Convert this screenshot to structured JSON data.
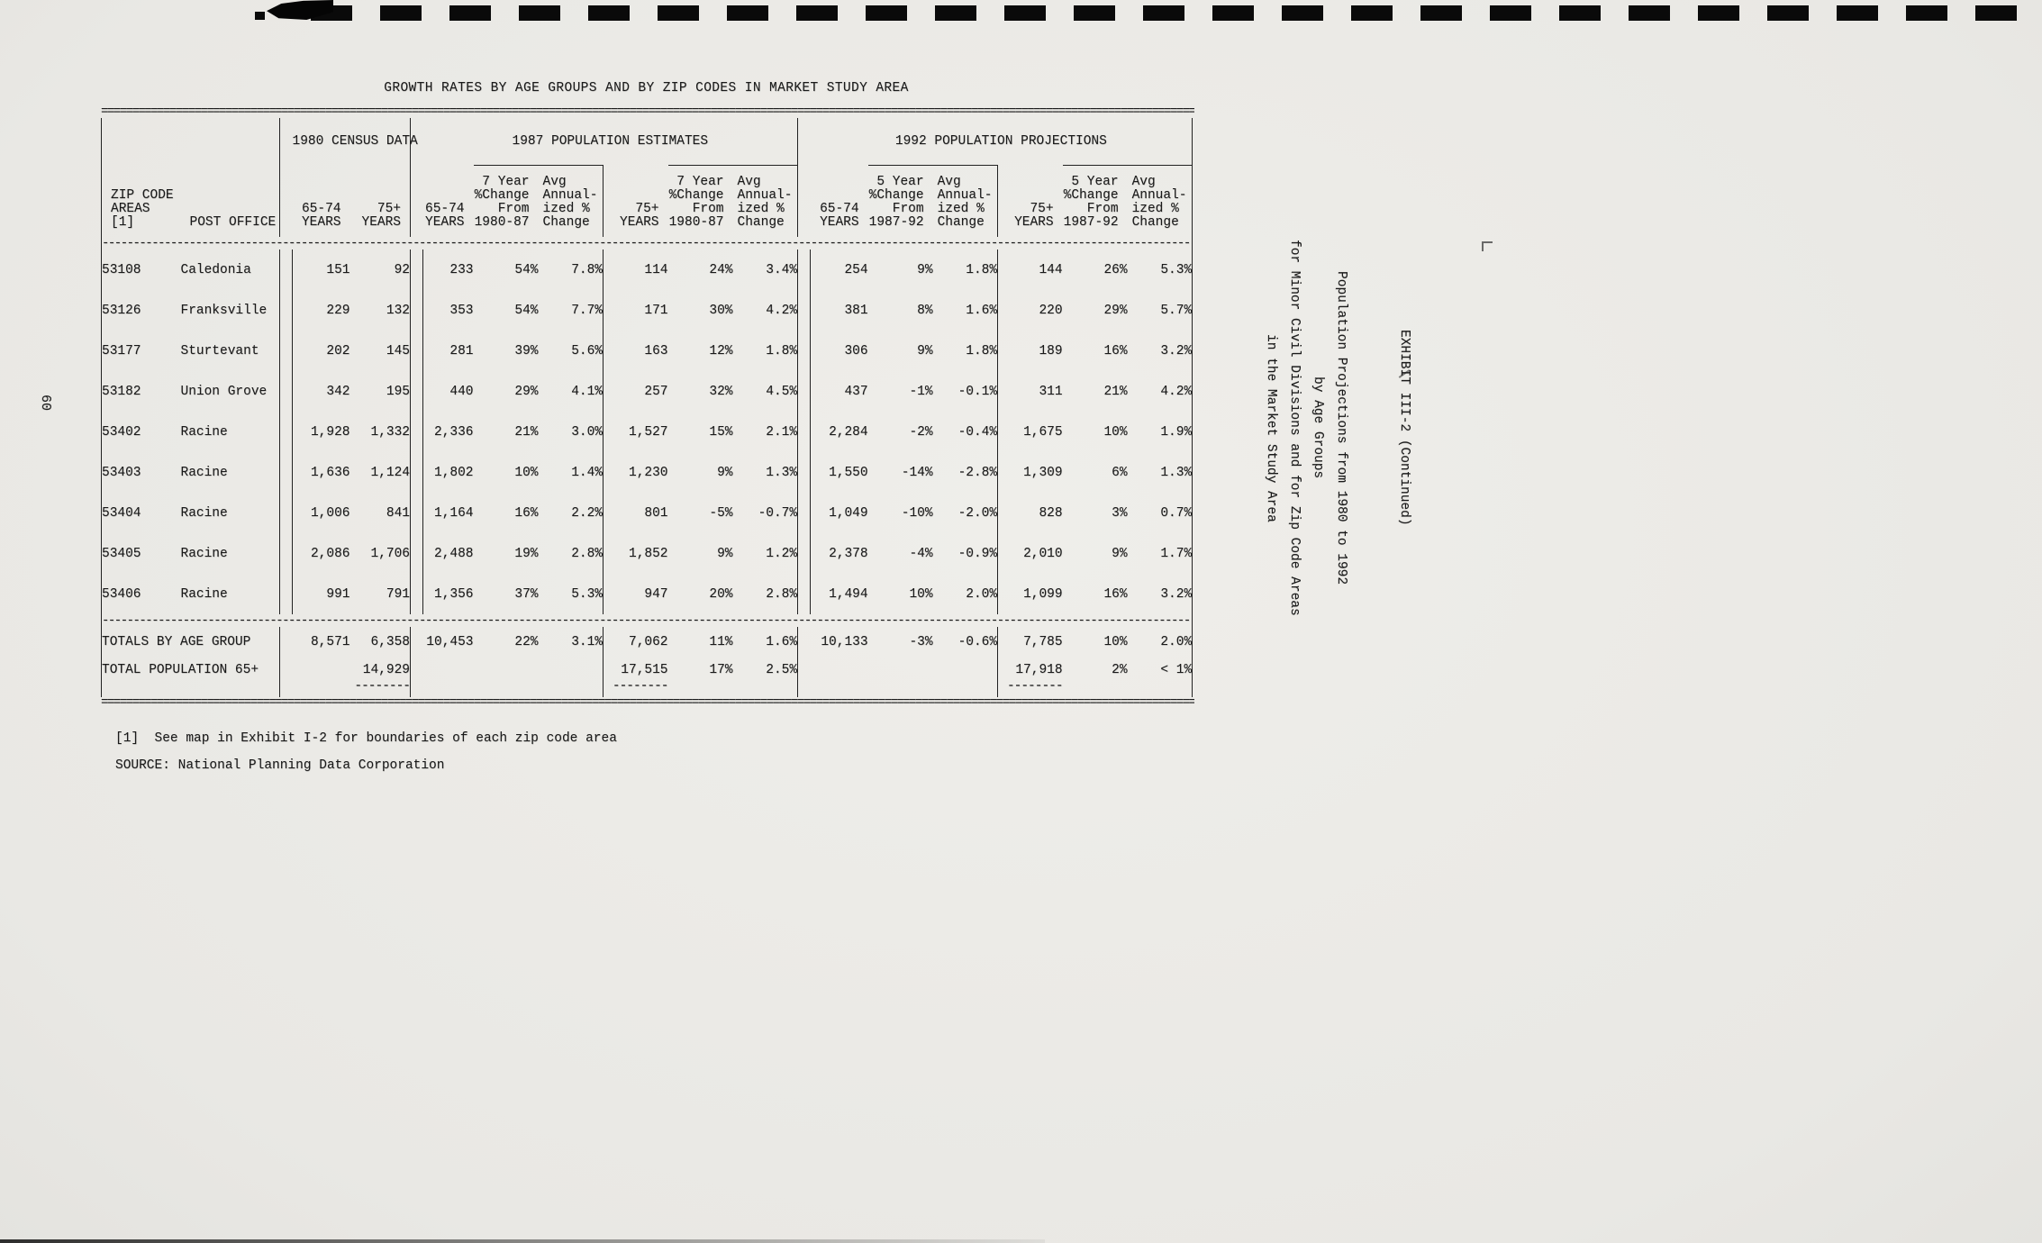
{
  "page": {
    "number": "60",
    "title": "GROWTH RATES BY AGE GROUPS AND BY ZIP CODES IN MARKET STUDY AREA",
    "footnote": "[1]  See map in Exhibit I-2 for boundaries of each zip code area",
    "source": "SOURCE: National Planning Data Corporation"
  },
  "margin_notes": {
    "exhibit": "EXHIBIT III-2 (Continued)",
    "caption": [
      "Population Projections from 1980 to 1992",
      "by Age Groups",
      "for Minor Civil Divisions and for Zip Code Areas",
      "in the Market Study Area"
    ]
  },
  "table": {
    "groups": [
      "1980 CENSUS DATA",
      "1987 POPULATION ESTIMATES",
      "1992 POPULATION PROJECTIONS"
    ],
    "headers": {
      "zip": "ZIP CODE\nAREAS [1]",
      "post_office": "POST OFFICE",
      "years_6574": "65-74\nYEARS",
      "years_75": "75+\nYEARS",
      "chg_1987": "7 Year\n%Change\nFrom\n1980-87",
      "chg_1992": "5 Year\n%Change\nFrom\n1987-92",
      "ann": "Avg\nAnnual-\nized %\nChange"
    },
    "rows": [
      {
        "zip": "53108",
        "po": "Caledonia",
        "v": [
          "151",
          "92",
          "233",
          "54%",
          "7.8%",
          "114",
          "24%",
          "3.4%",
          "254",
          "9%",
          "1.8%",
          "144",
          "26%",
          "5.3%"
        ]
      },
      {
        "zip": "53126",
        "po": "Franksville",
        "v": [
          "229",
          "132",
          "353",
          "54%",
          "7.7%",
          "171",
          "30%",
          "4.2%",
          "381",
          "8%",
          "1.6%",
          "220",
          "29%",
          "5.7%"
        ]
      },
      {
        "zip": "53177",
        "po": "Sturtevant",
        "v": [
          "202",
          "145",
          "281",
          "39%",
          "5.6%",
          "163",
          "12%",
          "1.8%",
          "306",
          "9%",
          "1.8%",
          "189",
          "16%",
          "3.2%"
        ]
      },
      {
        "zip": "53182",
        "po": "Union Grove",
        "v": [
          "342",
          "195",
          "440",
          "29%",
          "4.1%",
          "257",
          "32%",
          "4.5%",
          "437",
          "-1%",
          "-0.1%",
          "311",
          "21%",
          "4.2%"
        ]
      },
      {
        "zip": "53402",
        "po": "Racine",
        "v": [
          "1,928",
          "1,332",
          "2,336",
          "21%",
          "3.0%",
          "1,527",
          "15%",
          "2.1%",
          "2,284",
          "-2%",
          "-0.4%",
          "1,675",
          "10%",
          "1.9%"
        ]
      },
      {
        "zip": "53403",
        "po": "Racine",
        "v": [
          "1,636",
          "1,124",
          "1,802",
          "10%",
          "1.4%",
          "1,230",
          "9%",
          "1.3%",
          "1,550",
          "-14%",
          "-2.8%",
          "1,309",
          "6%",
          "1.3%"
        ]
      },
      {
        "zip": "53404",
        "po": "Racine",
        "v": [
          "1,006",
          "841",
          "1,164",
          "16%",
          "2.2%",
          "801",
          "-5%",
          "-0.7%",
          "1,049",
          "-10%",
          "-2.0%",
          "828",
          "3%",
          "0.7%"
        ]
      },
      {
        "zip": "53405",
        "po": "Racine",
        "v": [
          "2,086",
          "1,706",
          "2,488",
          "19%",
          "2.8%",
          "1,852",
          "9%",
          "1.2%",
          "2,378",
          "-4%",
          "-0.9%",
          "2,010",
          "9%",
          "1.7%"
        ]
      },
      {
        "zip": "53406",
        "po": "Racine",
        "v": [
          "991",
          "791",
          "1,356",
          "37%",
          "5.3%",
          "947",
          "20%",
          "2.8%",
          "1,494",
          "10%",
          "2.0%",
          "1,099",
          "16%",
          "3.2%"
        ]
      }
    ],
    "totals_row": {
      "label": "TOTALS BY AGE GROUP",
      "v": [
        "8,571",
        "6,358",
        "10,453",
        "22%",
        "3.1%",
        "7,062",
        "11%",
        "1.6%",
        "10,133",
        "-3%",
        "-0.6%",
        "7,785",
        "10%",
        "2.0%"
      ]
    },
    "total65_row": {
      "label": "TOTAL POPULATION 65+",
      "v": [
        "",
        "14,929",
        "",
        "",
        "",
        "17,515",
        "17%",
        "2.5%",
        "",
        "",
        "",
        "17,918",
        "2%",
        "< 1%"
      ]
    }
  }
}
